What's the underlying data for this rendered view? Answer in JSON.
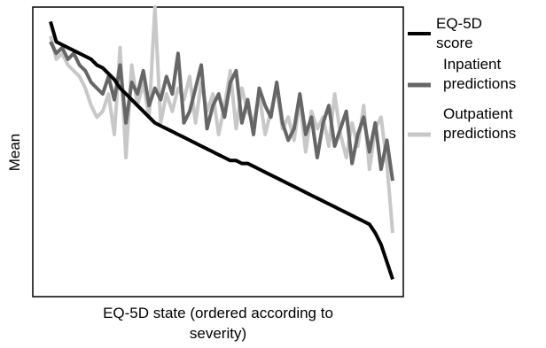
{
  "chart_data": {
    "type": "line",
    "x_label": "EQ-5D state (ordered according to severity)",
    "y_label": "Mean",
    "categories": [
      null,
      null,
      null,
      null,
      null,
      null,
      null,
      null,
      null,
      null,
      null,
      null,
      null,
      null,
      null,
      null,
      null,
      null,
      null,
      null,
      null,
      null,
      null,
      null,
      null,
      null,
      null,
      null,
      null,
      null,
      null,
      null,
      null,
      null,
      null,
      null,
      null,
      null,
      null,
      null,
      null,
      null,
      null,
      null,
      null,
      null,
      null,
      null,
      null,
      null,
      null,
      null,
      null,
      null,
      null,
      null,
      null,
      null,
      null,
      null
    ],
    "ylim": [
      0,
      100
    ],
    "series": [
      {
        "name": "EQ-5D score",
        "color": "#000000",
        "values": [
          95,
          88,
          87,
          86,
          85,
          84,
          83,
          82,
          80,
          79,
          77,
          75,
          72,
          70,
          68,
          66,
          64,
          62,
          60,
          59,
          58,
          57,
          56,
          55,
          54,
          53,
          52,
          51,
          50,
          49,
          48,
          47,
          47,
          46,
          46,
          45,
          44,
          43,
          42,
          41,
          40,
          39,
          38,
          37,
          36,
          35,
          34,
          33,
          32,
          31,
          30,
          29,
          28,
          27,
          26,
          25,
          22,
          18,
          12,
          6
        ]
      },
      {
        "name": "Inpatient predictions",
        "color": "#666666",
        "values": [
          88,
          84,
          86,
          82,
          84,
          80,
          78,
          74,
          72,
          70,
          76,
          68,
          80,
          60,
          74,
          70,
          78,
          66,
          72,
          68,
          76,
          70,
          84,
          60,
          64,
          72,
          80,
          58,
          66,
          70,
          62,
          74,
          78,
          60,
          68,
          56,
          72,
          66,
          62,
          74,
          60,
          54,
          58,
          70,
          56,
          62,
          48,
          60,
          66,
          52,
          58,
          64,
          46,
          56,
          62,
          50,
          60,
          44,
          54,
          40
        ]
      },
      {
        "name": "Outpatient predictions",
        "color": "#c8c8c8",
        "values": [
          90,
          82,
          84,
          80,
          78,
          76,
          72,
          66,
          62,
          64,
          70,
          56,
          86,
          48,
          80,
          66,
          74,
          62,
          100,
          60,
          70,
          64,
          72,
          68,
          76,
          60,
          74,
          64,
          70,
          56,
          66,
          78,
          58,
          72,
          64,
          60,
          70,
          56,
          64,
          72,
          58,
          62,
          54,
          68,
          50,
          64,
          58,
          62,
          52,
          70,
          56,
          48,
          60,
          52,
          66,
          44,
          58,
          62,
          46,
          22
        ]
      }
    ]
  }
}
